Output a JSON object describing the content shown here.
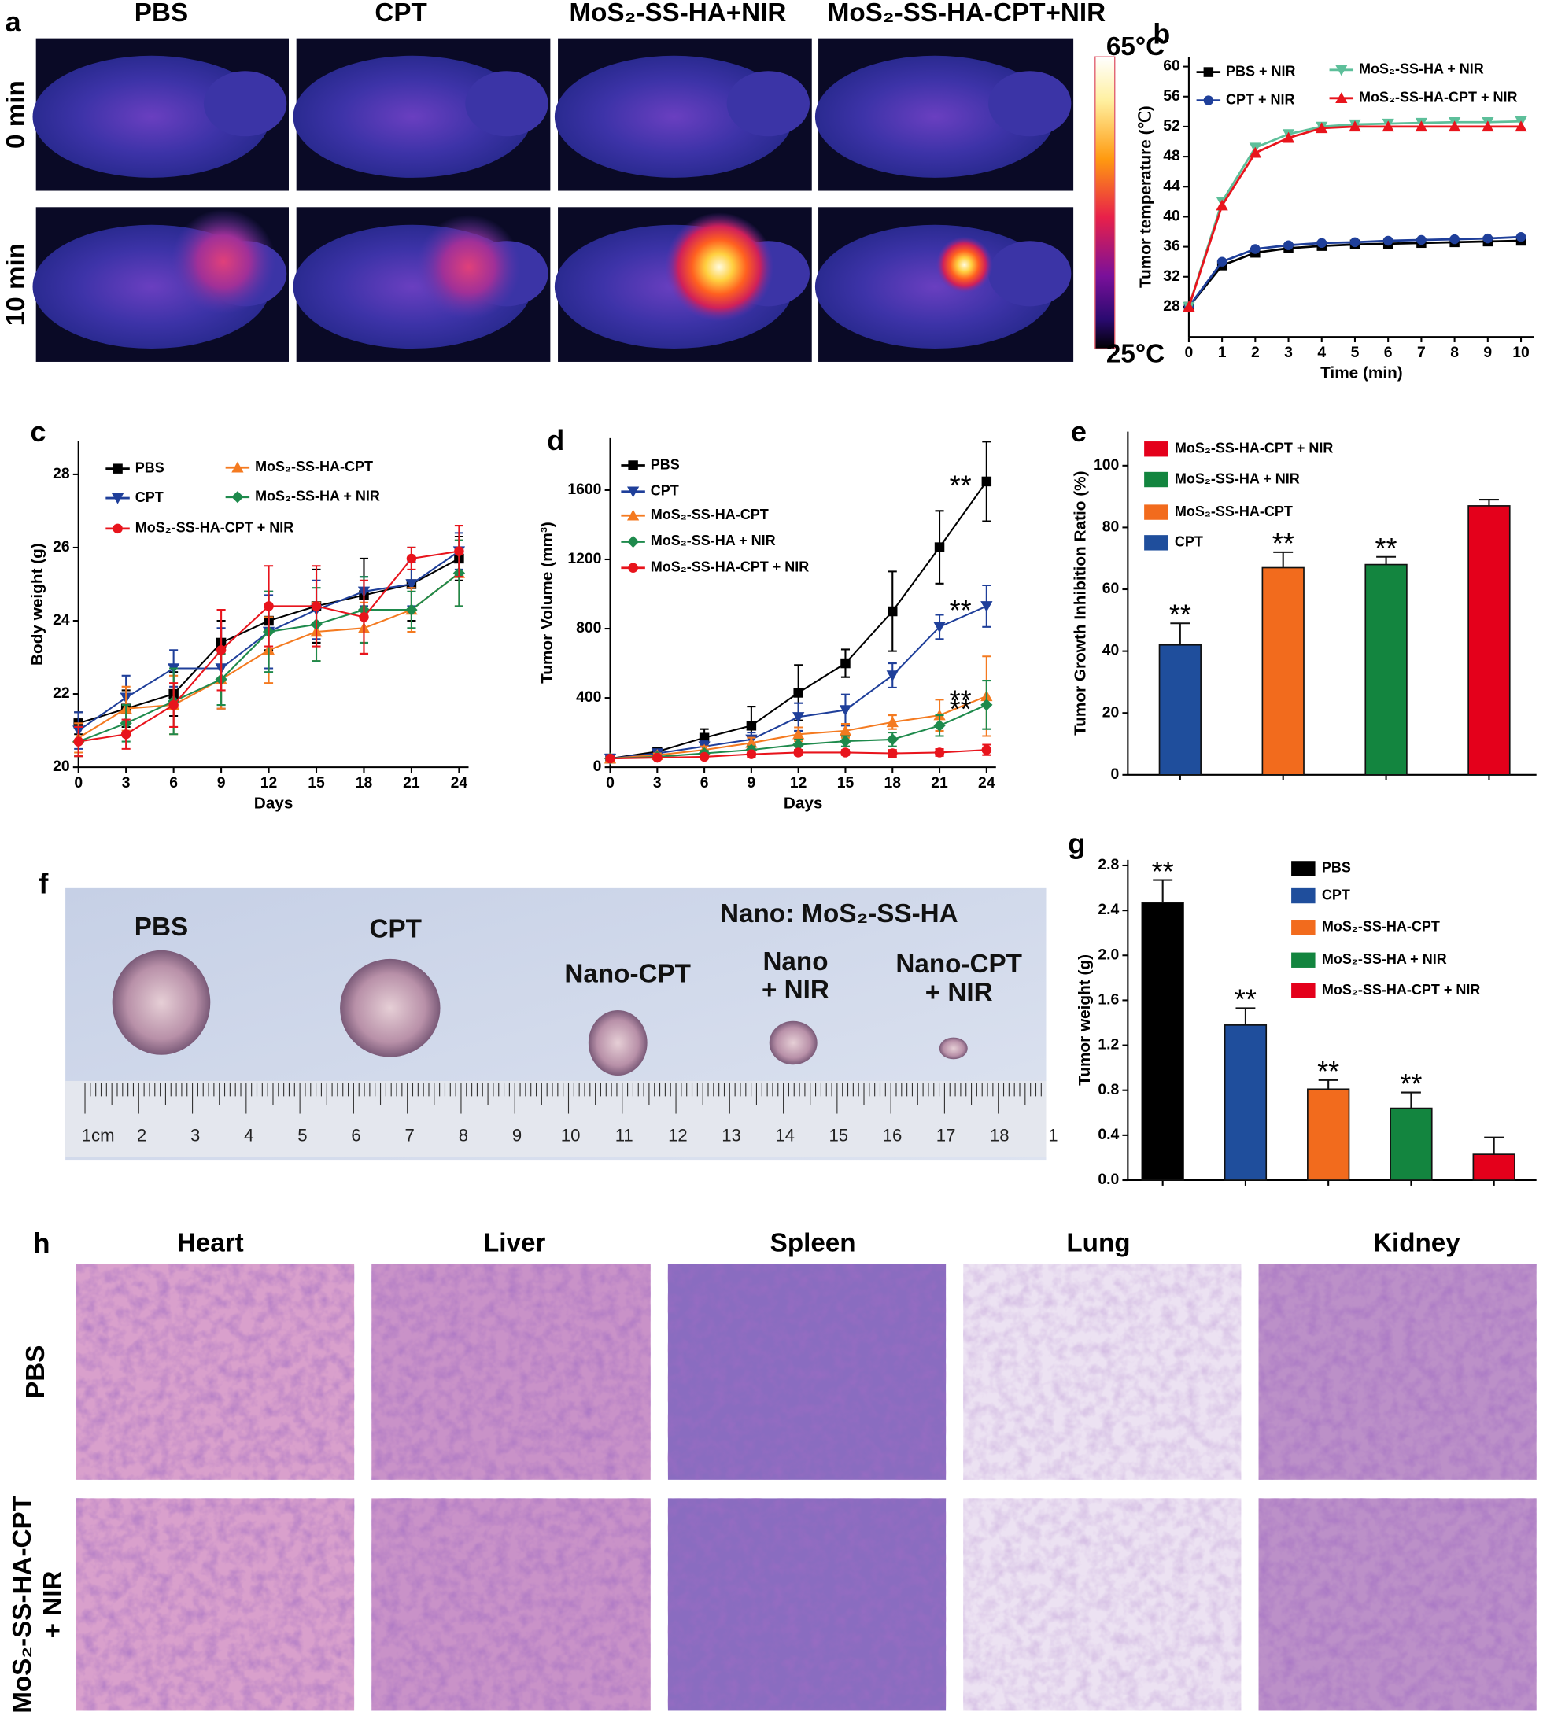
{
  "panel_letters": [
    "a",
    "b",
    "c",
    "d",
    "e",
    "f",
    "g",
    "h"
  ],
  "thermal": {
    "columns": [
      "PBS",
      "CPT",
      "MoS₂-SS-HA+NIR",
      "MoS₂-SS-HA-CPT+NIR"
    ],
    "rows": [
      "0 min",
      "10 min"
    ],
    "scale_max": "65°C",
    "scale_min": "25°C"
  },
  "photo": {
    "header": "Nano: MoS₂-SS-HA",
    "labels": [
      [
        "PBS"
      ],
      [
        "CPT"
      ],
      [
        "Nano-CPT"
      ],
      [
        "Nano",
        "+ NIR"
      ],
      [
        "Nano-CPT",
        "+ NIR"
      ]
    ],
    "ruler": [
      "1cm",
      "2",
      "3",
      "4",
      "5",
      "6",
      "7",
      "8",
      "9",
      "10",
      "11",
      "12",
      "13",
      "14",
      "15",
      "16",
      "17",
      "18",
      "1"
    ]
  },
  "histology": {
    "columns": [
      "Heart",
      "Liver",
      "Spleen",
      "Lung",
      "Kidney"
    ],
    "rows": [
      [
        "PBS"
      ],
      [
        "MoS₂-SS-HA-CPT",
        "+ NIR"
      ]
    ]
  },
  "chart_data": [
    {
      "type": "line",
      "x_label": "Time (min)",
      "y_label": "Tumor temperature (℃)",
      "x": [
        0,
        1,
        2,
        3,
        4,
        5,
        6,
        7,
        8,
        9,
        10
      ],
      "xlim": [
        0,
        10.4
      ],
      "ylim": [
        24,
        61.3
      ],
      "xticks": [
        0,
        1,
        2,
        3,
        4,
        5,
        6,
        7,
        8,
        9,
        10
      ],
      "yticks": [
        28,
        32,
        36,
        40,
        44,
        48,
        52,
        56,
        60
      ],
      "series": [
        {
          "name": "PBS + NIR",
          "color": "#000000",
          "marker": "square",
          "values": [
            28,
            33.5,
            35.2,
            35.8,
            36.1,
            36.3,
            36.4,
            36.5,
            36.6,
            36.7,
            36.8
          ]
        },
        {
          "name": "CPT + NIR",
          "color": "#1f3f9a",
          "marker": "circle",
          "values": [
            28,
            34,
            35.7,
            36.2,
            36.5,
            36.6,
            36.8,
            36.9,
            37,
            37.1,
            37.3
          ]
        },
        {
          "name": "MoS₂-SS-HA + NIR",
          "color": "#5dbf9a",
          "marker": "triangle-down",
          "values": [
            28,
            42,
            49.2,
            51,
            52,
            52.3,
            52.4,
            52.5,
            52.6,
            52.6,
            52.7
          ]
        },
        {
          "name": "MoS₂-SS-HA-CPT + NIR",
          "color": "#e8141c",
          "marker": "triangle-up",
          "values": [
            28,
            41.5,
            48.5,
            50.5,
            51.8,
            52,
            52,
            52,
            52,
            52,
            52
          ]
        }
      ]
    },
    {
      "type": "line",
      "x_label": "Days",
      "y_label": "Body weight (g)",
      "x": [
        0,
        3,
        6,
        9,
        12,
        15,
        18,
        21,
        24
      ],
      "xlim": [
        0,
        24.6
      ],
      "ylim": [
        20,
        28.9
      ],
      "xticks": [
        0,
        3,
        6,
        9,
        12,
        15,
        18,
        21,
        24
      ],
      "yticks": [
        20,
        22,
        24,
        26,
        28
      ],
      "series": [
        {
          "name": "PBS",
          "color": "#000000",
          "marker": "square",
          "values": [
            21.2,
            21.6,
            22.0,
            23.4,
            24.0,
            24.4,
            24.7,
            25.0,
            25.7
          ],
          "errors": [
            0.3,
            0.5,
            0.6,
            0.6,
            0.8,
            1.0,
            1.0,
            1.0,
            0.6
          ]
        },
        {
          "name": "CPT",
          "color": "#1f3f9a",
          "marker": "triangle-down",
          "values": [
            21.0,
            21.9,
            22.7,
            22.7,
            23.7,
            24.3,
            24.8,
            25.0,
            25.9
          ],
          "errors": [
            0.5,
            0.6,
            0.5,
            1.1,
            1.0,
            0.8,
            0.4,
            0.6,
            0.5
          ]
        },
        {
          "name": "MoS₂-SS-HA-CPT",
          "color": "#f47a20",
          "marker": "triangle-up",
          "values": [
            20.8,
            21.6,
            21.7,
            22.4,
            23.2,
            23.7,
            23.8,
            24.3,
            25.3
          ],
          "errors": [
            0.4,
            0.6,
            0.8,
            0.8,
            0.9,
            0.8,
            0.7,
            0.6,
            0.9
          ]
        },
        {
          "name": "MoS₂-SS-HA + NIR",
          "color": "#1e8a4c",
          "marker": "diamond",
          "values": [
            20.7,
            21.2,
            21.8,
            22.4,
            23.7,
            23.9,
            24.3,
            24.3,
            25.3
          ],
          "errors": [
            0.4,
            0.5,
            0.9,
            0.7,
            1.1,
            1.0,
            0.9,
            0.5,
            0.9
          ]
        },
        {
          "name": "MoS₂-SS-HA-CPT + NIR",
          "color": "#e8141c",
          "marker": "circle",
          "values": [
            20.7,
            20.9,
            21.7,
            23.2,
            24.4,
            24.4,
            24.1,
            25.7,
            25.9
          ],
          "errors": [
            0.4,
            0.4,
            0.6,
            1.1,
            1.1,
            1.1,
            1.0,
            0.3,
            0.7
          ]
        }
      ]
    },
    {
      "type": "line",
      "x_label": "Days",
      "y_label": "Tumor Volume (mm³)",
      "x": [
        0,
        3,
        6,
        9,
        12,
        15,
        18,
        21,
        24
      ],
      "xlim": [
        0,
        24.6
      ],
      "ylim": [
        0,
        1900
      ],
      "xticks": [
        0,
        3,
        6,
        9,
        12,
        15,
        18,
        21,
        24
      ],
      "yticks": [
        0,
        400,
        800,
        1200,
        1600
      ],
      "series": [
        {
          "name": "PBS",
          "color": "#000000",
          "marker": "square",
          "significance": "**",
          "values": [
            50,
            90,
            170,
            240,
            430,
            600,
            900,
            1270,
            1650
          ],
          "errors": [
            5,
            20,
            50,
            110,
            160,
            80,
            230,
            210,
            230
          ]
        },
        {
          "name": "CPT",
          "color": "#1f3f9a",
          "marker": "triangle-down",
          "significance": "**",
          "values": [
            50,
            80,
            120,
            160,
            290,
            330,
            530,
            810,
            930
          ],
          "errors": [
            5,
            15,
            30,
            40,
            80,
            90,
            70,
            70,
            120
          ]
        },
        {
          "name": "MoS₂-SS-HA-CPT",
          "color": "#f47a20",
          "marker": "triangle-up",
          "significance": "**",
          "values": [
            50,
            70,
            100,
            140,
            190,
            210,
            260,
            300,
            410
          ],
          "errors": [
            5,
            10,
            20,
            30,
            40,
            40,
            40,
            90,
            230
          ]
        },
        {
          "name": "MoS₂-SS-HA + NIR",
          "color": "#1e8a4c",
          "marker": "diamond",
          "significance": "**",
          "values": [
            50,
            60,
            80,
            100,
            130,
            150,
            160,
            240,
            360
          ],
          "errors": [
            5,
            10,
            15,
            20,
            30,
            30,
            40,
            60,
            140
          ]
        },
        {
          "name": "MoS₂-SS-HA-CPT + NIR",
          "color": "#e8141c",
          "marker": "circle",
          "values": [
            50,
            55,
            60,
            75,
            85,
            85,
            80,
            85,
            100
          ],
          "errors": [
            5,
            10,
            10,
            15,
            15,
            15,
            20,
            20,
            30
          ]
        }
      ]
    },
    {
      "type": "bar",
      "y_label": "Tumor Growth Inhibition Ratio (%)",
      "categories": [
        "CPT",
        "MoS₂-SS-HA-CPT",
        "MoS₂-SS-HA + NIR",
        "MoS₂-SS-HA-CPT + NIR"
      ],
      "values": [
        42,
        67,
        68,
        87
      ],
      "errors": [
        7,
        5,
        2.5,
        2
      ],
      "annotations": [
        "**",
        "**",
        "**",
        null
      ],
      "colors": [
        "#1f4e9c",
        "#f26b1d",
        "#13853f",
        "#e4001b"
      ],
      "ylim": [
        0,
        111
      ],
      "yticks": [
        0,
        20,
        40,
        60,
        80,
        100
      ]
    },
    {
      "type": "bar",
      "y_label": "Tumor weight (g)",
      "categories": [
        "PBS",
        "CPT",
        "MoS₂-SS-HA-CPT",
        "MoS₂-SS-HA + NIR",
        "MoS₂-SS-HA-CPT + NIR"
      ],
      "values": [
        2.47,
        1.38,
        0.81,
        0.64,
        0.23
      ],
      "errors": [
        0.2,
        0.15,
        0.08,
        0.14,
        0.15
      ],
      "annotations": [
        "**",
        "**",
        "**",
        "**",
        null
      ],
      "colors": [
        "#000000",
        "#1f4e9c",
        "#f26b1d",
        "#13853f",
        "#e4001b"
      ],
      "ylim": [
        0,
        2.85
      ],
      "yticks": [
        {
          "value": 0,
          "label": "0.0"
        },
        0.4,
        0.8,
        1.2,
        1.6,
        {
          "value": 2,
          "label": "2.0"
        },
        2.4,
        2.8
      ]
    }
  ]
}
